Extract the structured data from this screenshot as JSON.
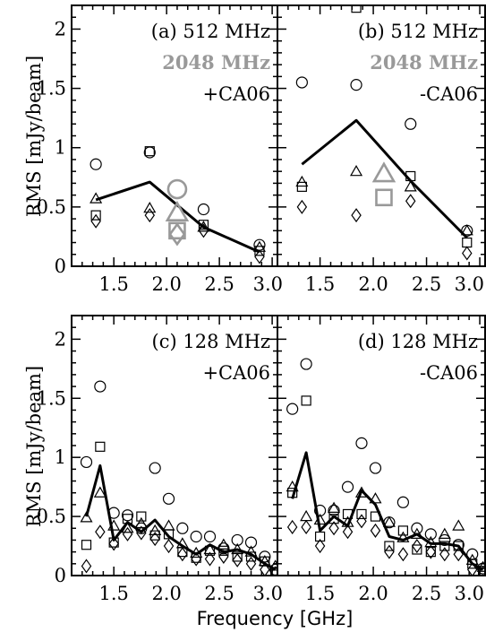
{
  "chart_data": {
    "type": "scatter",
    "xlabel": "Frequency [GHz]",
    "ylabel": "RMS [mJy/beam]",
    "xlim": [
      1.1,
      3.05
    ],
    "ylim": [
      0,
      2.2
    ],
    "xticks": [
      "1.5",
      "2.0",
      "2.5",
      "3.0"
    ],
    "yticks": [
      "0",
      "0.5",
      "1",
      "1.5",
      "2"
    ],
    "colors": {
      "black": "#000000",
      "gray": "#999999"
    },
    "panels": [
      {
        "id": "a",
        "labels": {
          "prefix": "(a)",
          "line1": "512 MHz",
          "line2": "2048 MHz",
          "line3": "+CA06"
        },
        "series": [
          {
            "marker": "circle",
            "color": "#000000",
            "x": [
              1.33,
              1.84,
              2.35,
              2.88
            ],
            "y": [
              0.86,
              0.96,
              0.48,
              0.18
            ]
          },
          {
            "marker": "square",
            "color": "#000000",
            "x": [
              1.33,
              1.84,
              2.35,
              2.88
            ],
            "y": [
              0.43,
              0.97,
              0.35,
              0.13
            ]
          },
          {
            "marker": "triangle",
            "color": "#000000",
            "x": [
              1.33,
              1.84,
              2.35,
              2.88
            ],
            "y": [
              0.57,
              0.49,
              0.33,
              0.16
            ]
          },
          {
            "marker": "diamond",
            "color": "#000000",
            "x": [
              1.33,
              1.84,
              2.35,
              2.88
            ],
            "y": [
              0.38,
              0.43,
              0.3,
              0.08
            ]
          },
          {
            "marker": "line",
            "color": "#000000",
            "x": [
              1.33,
              1.84,
              2.35,
              2.88
            ],
            "y": [
              0.56,
              0.71,
              0.33,
              0.12
            ]
          },
          {
            "marker": "circle",
            "color": "#999999",
            "size": "large",
            "x": [
              2.1
            ],
            "y": [
              0.65
            ]
          },
          {
            "marker": "triangle",
            "color": "#999999",
            "size": "large",
            "x": [
              2.1
            ],
            "y": [
              0.45
            ]
          },
          {
            "marker": "square",
            "color": "#999999",
            "size": "large",
            "x": [
              2.1
            ],
            "y": [
              0.3
            ]
          },
          {
            "marker": "diamond",
            "color": "#999999",
            "size": "large",
            "x": [
              2.1
            ],
            "y": [
              0.27
            ]
          }
        ]
      },
      {
        "id": "b",
        "labels": {
          "prefix": "(b)",
          "line1": "512 MHz",
          "line2": "2048 MHz",
          "line3": "-CA06"
        },
        "series": [
          {
            "marker": "circle",
            "color": "#000000",
            "x": [
              1.33,
              1.84,
              2.35,
              2.88
            ],
            "y": [
              1.55,
              1.53,
              1.2,
              0.3
            ]
          },
          {
            "marker": "square",
            "color": "#000000",
            "x": [
              1.33,
              1.84,
              2.35,
              2.88
            ],
            "y": [
              0.67,
              2.18,
              0.76,
              0.2
            ]
          },
          {
            "marker": "triangle",
            "color": "#000000",
            "x": [
              1.33,
              1.84,
              2.35,
              2.88
            ],
            "y": [
              0.71,
              0.8,
              0.67,
              0.3
            ]
          },
          {
            "marker": "diamond",
            "color": "#000000",
            "x": [
              1.33,
              1.84,
              2.35,
              2.88
            ],
            "y": [
              0.5,
              0.43,
              0.55,
              0.11
            ]
          },
          {
            "marker": "line",
            "color": "#000000",
            "x": [
              1.33,
              1.84,
              2.35,
              2.88
            ],
            "y": [
              0.86,
              1.23,
              0.72,
              0.24
            ]
          },
          {
            "marker": "triangle",
            "color": "#999999",
            "size": "large",
            "x": [
              2.1
            ],
            "y": [
              0.78
            ]
          },
          {
            "marker": "square",
            "color": "#999999",
            "size": "large",
            "x": [
              2.1
            ],
            "y": [
              0.58
            ]
          }
        ]
      },
      {
        "id": "c",
        "labels": {
          "prefix": "(c)",
          "line1": "128 MHz",
          "line2": "",
          "line3": "+CA06"
        },
        "series": [
          {
            "marker": "circle",
            "color": "#000000",
            "x": [
              1.24,
              1.37,
              1.5,
              1.63,
              1.76,
              1.89,
              2.02,
              2.15,
              2.28,
              2.41,
              2.54,
              2.67,
              2.8,
              2.93,
              3.03
            ],
            "y": [
              0.96,
              1.6,
              0.53,
              0.51,
              0.4,
              0.91,
              0.65,
              0.4,
              0.33,
              0.33,
              0.23,
              0.3,
              0.28,
              0.16,
              0.05
            ]
          },
          {
            "marker": "square",
            "color": "#000000",
            "x": [
              1.24,
              1.37,
              1.5,
              1.63,
              1.76,
              1.89,
              2.02,
              2.15,
              2.28,
              2.41,
              2.54,
              2.67,
              2.8,
              2.93,
              3.03
            ],
            "y": [
              0.26,
              1.09,
              0.28,
              0.48,
              0.5,
              0.34,
              0.35,
              0.2,
              0.15,
              0.21,
              0.21,
              0.16,
              0.16,
              0.12,
              0.03
            ]
          },
          {
            "marker": "triangle",
            "color": "#000000",
            "x": [
              1.24,
              1.37,
              1.5,
              1.63,
              1.76,
              1.89,
              2.02,
              2.15,
              2.28,
              2.41,
              2.54,
              2.67,
              2.8,
              2.93,
              3.03
            ],
            "y": [
              0.49,
              0.7,
              0.42,
              0.4,
              0.44,
              0.38,
              0.42,
              0.27,
              0.19,
              0.22,
              0.26,
              0.22,
              0.2,
              0.12,
              0.08
            ]
          },
          {
            "marker": "diamond",
            "color": "#000000",
            "x": [
              1.24,
              1.37,
              1.5,
              1.63,
              1.76,
              1.89,
              2.02,
              2.15,
              2.28,
              2.41,
              2.54,
              2.67,
              2.8,
              2.93,
              3.03
            ],
            "y": [
              0.08,
              0.37,
              0.27,
              0.35,
              0.36,
              0.31,
              0.25,
              0.18,
              0.14,
              0.14,
              0.16,
              0.13,
              0.1,
              0.05,
              0.02
            ]
          },
          {
            "marker": "line",
            "color": "#000000",
            "x": [
              1.24,
              1.37,
              1.5,
              1.63,
              1.76,
              1.89,
              2.02,
              2.15,
              2.28,
              2.41,
              2.54,
              2.67,
              2.8,
              2.93,
              3.03
            ],
            "y": [
              0.5,
              0.93,
              0.3,
              0.45,
              0.37,
              0.47,
              0.33,
              0.25,
              0.18,
              0.26,
              0.2,
              0.22,
              0.18,
              0.1,
              0.05
            ]
          }
        ]
      },
      {
        "id": "d",
        "labels": {
          "prefix": "(d)",
          "line1": "128 MHz",
          "line2": "",
          "line3": "-CA06"
        },
        "series": [
          {
            "marker": "circle",
            "color": "#000000",
            "x": [
              1.24,
              1.37,
              1.5,
              1.63,
              1.76,
              1.89,
              2.02,
              2.15,
              2.28,
              2.41,
              2.54,
              2.67,
              2.8,
              2.93,
              3.03
            ],
            "y": [
              1.41,
              1.79,
              0.55,
              0.55,
              0.75,
              1.12,
              0.91,
              0.45,
              0.62,
              0.4,
              0.35,
              0.3,
              0.26,
              0.18,
              0.06
            ]
          },
          {
            "marker": "square",
            "color": "#000000",
            "x": [
              1.24,
              1.37,
              1.5,
              1.63,
              1.76,
              1.89,
              2.02,
              2.15,
              2.28,
              2.41,
              2.54,
              2.67,
              2.8,
              2.93,
              3.03
            ],
            "y": [
              0.7,
              1.48,
              0.33,
              0.48,
              0.52,
              0.52,
              0.5,
              0.25,
              0.38,
              0.22,
              0.2,
              0.25,
              0.25,
              0.1,
              0.04
            ]
          },
          {
            "marker": "triangle",
            "color": "#000000",
            "x": [
              1.24,
              1.37,
              1.5,
              1.63,
              1.76,
              1.89,
              2.02,
              2.15,
              2.28,
              2.41,
              2.54,
              2.67,
              2.8,
              2.93,
              3.03
            ],
            "y": [
              0.75,
              0.5,
              0.47,
              0.57,
              0.45,
              0.7,
              0.65,
              0.45,
              0.32,
              0.35,
              0.28,
              0.35,
              0.42,
              0.13,
              0.07
            ]
          },
          {
            "marker": "diamond",
            "color": "#000000",
            "x": [
              1.24,
              1.37,
              1.5,
              1.63,
              1.76,
              1.89,
              2.02,
              2.15,
              2.28,
              2.41,
              2.54,
              2.67,
              2.8,
              2.93,
              3.03
            ],
            "y": [
              0.41,
              0.41,
              0.25,
              0.4,
              0.37,
              0.46,
              0.38,
              0.2,
              0.18,
              0.25,
              0.2,
              0.18,
              0.18,
              0.05,
              0.02
            ]
          },
          {
            "marker": "line",
            "color": "#000000",
            "x": [
              1.24,
              1.37,
              1.5,
              1.63,
              1.76,
              1.89,
              2.02,
              2.15,
              2.28,
              2.41,
              2.54,
              2.67,
              2.8,
              2.93,
              3.03
            ],
            "y": [
              0.65,
              1.04,
              0.38,
              0.5,
              0.42,
              0.72,
              0.6,
              0.33,
              0.3,
              0.35,
              0.27,
              0.27,
              0.25,
              0.1,
              0.05
            ]
          }
        ]
      }
    ]
  }
}
